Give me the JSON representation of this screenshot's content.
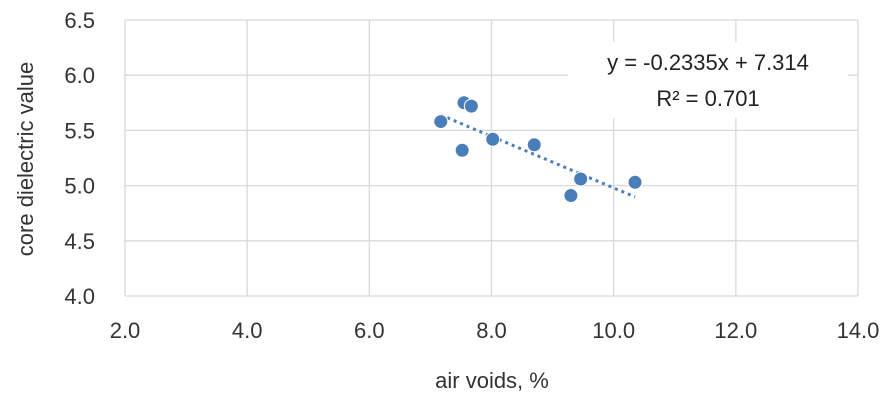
{
  "chart_data": {
    "type": "scatter",
    "title": "",
    "xlabel": "air voids, %",
    "ylabel": "core dielectric value",
    "xlim": [
      2.0,
      14.0
    ],
    "ylim": [
      4.0,
      6.5
    ],
    "x_ticks": [
      "2.0",
      "4.0",
      "6.0",
      "8.0",
      "10.0",
      "12.0",
      "14.0"
    ],
    "y_ticks": [
      "4.0",
      "4.5",
      "5.0",
      "5.5",
      "6.0",
      "6.5"
    ],
    "grid": true,
    "series": [
      {
        "color": "#4a7ebb",
        "points": [
          {
            "x": 7.17,
            "y": 5.58
          },
          {
            "x": 7.52,
            "y": 5.32
          },
          {
            "x": 7.55,
            "y": 5.75
          },
          {
            "x": 7.67,
            "y": 5.72
          },
          {
            "x": 8.02,
            "y": 5.42
          },
          {
            "x": 8.7,
            "y": 5.37
          },
          {
            "x": 9.3,
            "y": 4.91
          },
          {
            "x": 9.46,
            "y": 5.06
          },
          {
            "x": 10.35,
            "y": 5.03
          }
        ]
      }
    ],
    "trendline": {
      "type": "linear",
      "style": "dotted",
      "slope": -0.2335,
      "intercept": 7.314,
      "x_range": [
        7.17,
        10.35
      ],
      "equation": "y = -0.2335x + 7.314",
      "r_squared": "R² = 0.701"
    }
  }
}
